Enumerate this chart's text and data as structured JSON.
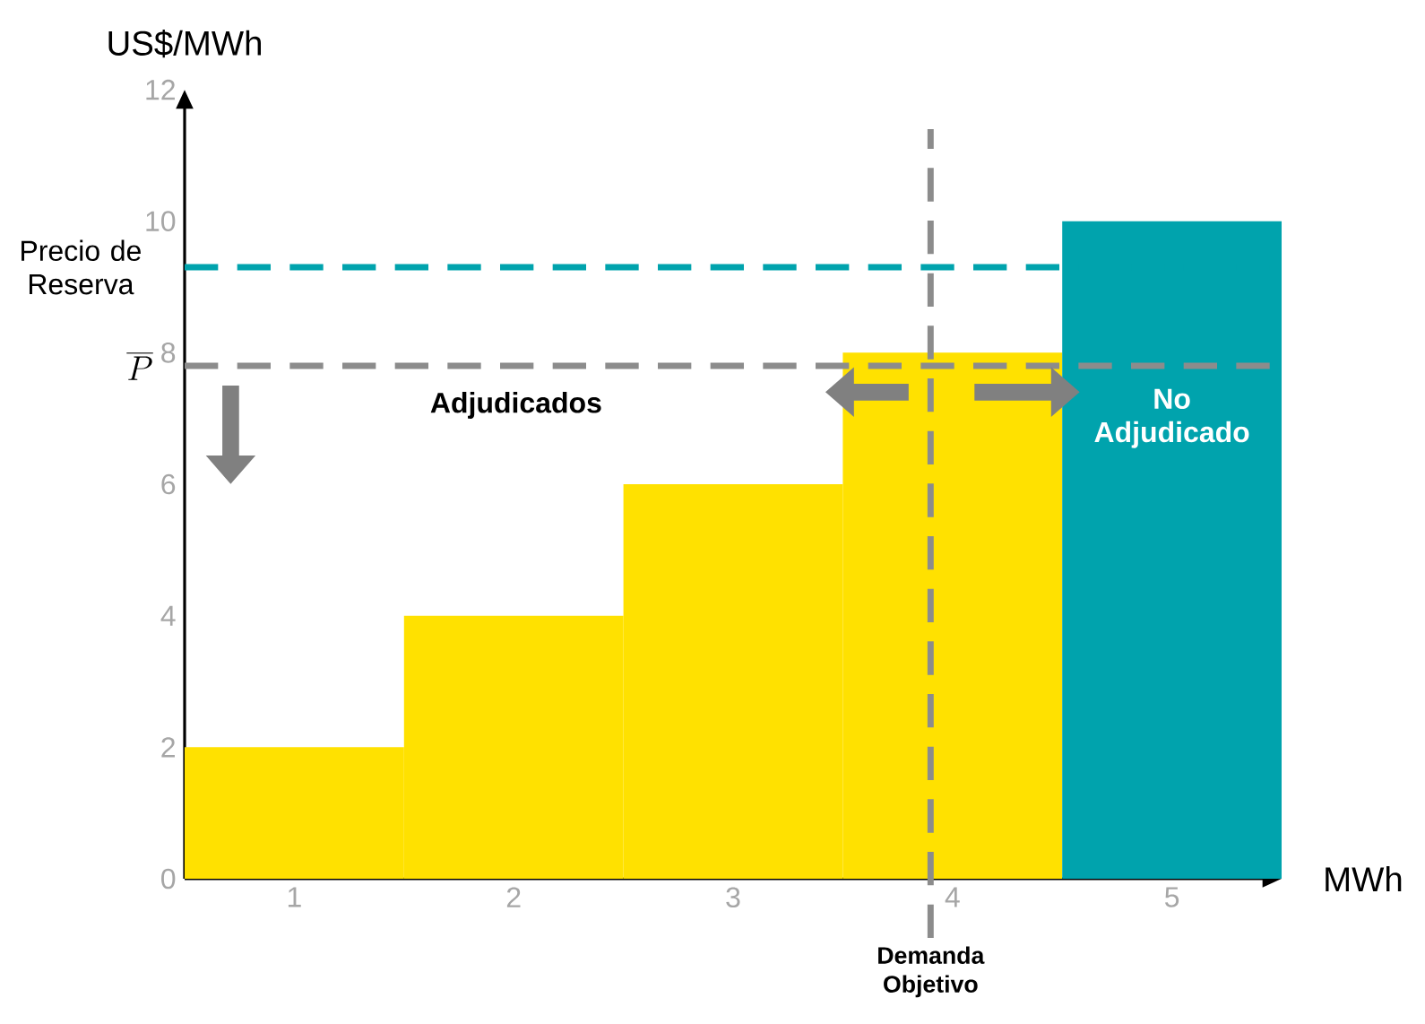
{
  "chart_data": {
    "type": "bar",
    "xlabel": "MWh",
    "ylabel": "US$/MWh",
    "x": [
      1,
      2,
      3,
      4,
      5
    ],
    "values": [
      2,
      4,
      6,
      8,
      10
    ],
    "colors": [
      "#ffe100",
      "#ffe100",
      "#ffe100",
      "#ffe100",
      "#00a3ad"
    ],
    "xlim": [
      0.5,
      5.5
    ],
    "ylim": [
      0,
      12
    ],
    "xticks": [
      1,
      2,
      3,
      4,
      5
    ],
    "yticks": [
      0,
      2,
      4,
      6,
      8,
      10,
      12
    ],
    "ref_lines": [
      {
        "axis": "y",
        "value": 9.3,
        "label": "Precio de Reserva",
        "color": "#00a3ad",
        "line_style": "dashed"
      },
      {
        "axis": "y",
        "value": 7.8,
        "label": "\\overline{P}",
        "color": "#8c8c8c",
        "line_style": "dashed"
      },
      {
        "axis": "x",
        "value": 3.9,
        "label": "Demanda Objetivo",
        "color": "#8c8c8c",
        "line_style": "dashed"
      }
    ],
    "annotations": [
      "Adjudicados",
      "No Adjudicado"
    ],
    "grid": false
  }
}
